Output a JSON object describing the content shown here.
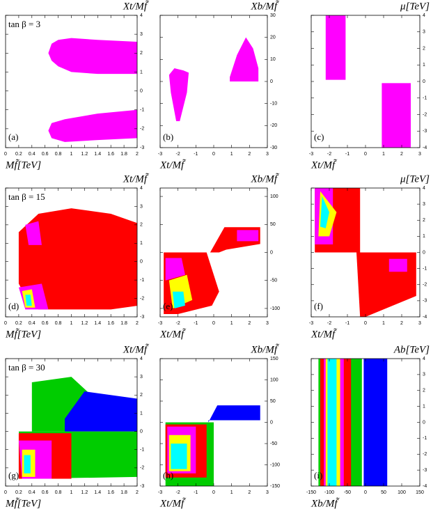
{
  "chart_data": [
    {
      "type": "scatter",
      "panel": "(a)",
      "annotation": "tan β = 3",
      "xlabel": "Mf̃[TeV]",
      "ylabel": "Xt/Mf̃",
      "xlim": [
        0,
        2
      ],
      "ylim": [
        -3,
        4
      ],
      "xticks": [
        0,
        0.2,
        0.4,
        0.6,
        0.8,
        1,
        1.2,
        1.4,
        1.6,
        1.8,
        2
      ],
      "yticks": [
        -3,
        -2,
        -1,
        0,
        1,
        2,
        3,
        4
      ],
      "series": [
        {
          "color": "#ff00ff",
          "x": [
            0.65,
            0.7,
            0.8,
            1.0,
            1.4,
            2,
            2,
            1.4,
            1.0,
            0.8,
            0.7
          ],
          "values": [
            2,
            2.5,
            2.7,
            2.8,
            2.7,
            2.6,
            0.9,
            0.9,
            1.0,
            1.3,
            1.6
          ]
        },
        {
          "color": "#ff00ff",
          "x": [
            0.65,
            0.7,
            0.9,
            1.4,
            2,
            2,
            1.4,
            0.9,
            0.7
          ],
          "values": [
            -2.1,
            -1.7,
            -1.5,
            -1.2,
            -1.0,
            -2.5,
            -2.6,
            -2.7,
            -2.5
          ]
        }
      ]
    },
    {
      "type": "scatter",
      "panel": "(b)",
      "xlabel": "Xt/Mf̃",
      "ylabel": "Xb/Mf̃",
      "xlim": [
        -3,
        3
      ],
      "ylim": [
        -30,
        30
      ],
      "xticks": [
        -3,
        -2,
        -1,
        0,
        1,
        2,
        3
      ],
      "yticks": [
        -30,
        -20,
        -10,
        0,
        10,
        20,
        30
      ],
      "series": [
        {
          "color": "#ff00ff",
          "x": [
            -2.5,
            -2.2,
            -1.7,
            -1.4,
            -1.5,
            -1.9,
            -2.1,
            -2.4
          ],
          "values": [
            3,
            6,
            5,
            4,
            -5,
            -18,
            -18,
            -5
          ]
        },
        {
          "color": "#ff00ff",
          "x": [
            0.9,
            1.3,
            1.8,
            2.2,
            2.5,
            2.5,
            0.9
          ],
          "values": [
            2,
            12,
            20,
            15,
            6,
            0,
            0
          ]
        }
      ]
    },
    {
      "type": "scatter",
      "panel": "(c)",
      "xlabel": "Xt/Mf̃",
      "ylabel": "μ[TeV]",
      "xlim": [
        -3,
        3
      ],
      "ylim": [
        -4,
        4
      ],
      "xticks": [
        -3,
        -2,
        -1,
        0,
        1,
        2,
        3
      ],
      "yticks": [
        -4,
        -3,
        -2,
        -1,
        0,
        1,
        2,
        3,
        4
      ],
      "series": [
        {
          "color": "#ff00ff",
          "x": [
            -2.2,
            -1.1,
            -1.1,
            -2.2
          ],
          "values": [
            4,
            4,
            0.1,
            0.1
          ]
        },
        {
          "color": "#ff00ff",
          "x": [
            0.9,
            2.5,
            2.5,
            0.9
          ],
          "values": [
            -0.1,
            -0.1,
            -4,
            -4
          ]
        }
      ]
    },
    {
      "type": "scatter",
      "panel": "(d)",
      "annotation": "tan β = 15",
      "xlabel": "Mf̃[TeV]",
      "ylabel": "Xt/Mf̃",
      "xlim": [
        0,
        2
      ],
      "ylim": [
        -3,
        4
      ],
      "xticks": [
        0,
        0.2,
        0.4,
        0.6,
        0.8,
        1,
        1.2,
        1.4,
        1.6,
        1.8,
        2
      ],
      "yticks": [
        -3,
        -2,
        -1,
        0,
        1,
        2,
        3,
        4
      ],
      "series": [
        {
          "color": "#ff0000",
          "x": [
            0.2,
            0.5,
            1,
            1.6,
            2,
            2,
            1.6,
            1,
            0.5,
            0.35,
            0.2
          ],
          "values": [
            1.6,
            2.6,
            2.9,
            2.6,
            2.1,
            -2.4,
            -2.6,
            -2.6,
            -2.6,
            -2.2,
            -1.2
          ]
        },
        {
          "color": "#ff00ff",
          "x": [
            0.3,
            0.5,
            0.55,
            0.35
          ],
          "values": [
            2,
            2.2,
            0.9,
            0.9
          ]
        },
        {
          "color": "#ff00ff",
          "x": [
            0.2,
            0.55,
            0.65,
            0.3
          ],
          "values": [
            -1.4,
            -1.2,
            -2.6,
            -2.6
          ]
        },
        {
          "color": "#ffff00",
          "x": [
            0.25,
            0.4,
            0.45,
            0.3
          ],
          "values": [
            -1.6,
            -1.5,
            -2.5,
            -2.5
          ]
        },
        {
          "color": "#00ffff",
          "x": [
            0.3,
            0.38,
            0.4,
            0.32
          ],
          "values": [
            -1.8,
            -1.8,
            -2.4,
            -2.4
          ]
        }
      ]
    },
    {
      "type": "scatter",
      "panel": "(e)",
      "xlabel": "Xt/Mf̃",
      "ylabel": "Xb/Mf̃",
      "xlim": [
        -3,
        3
      ],
      "ylim": [
        -115,
        115
      ],
      "xticks": [
        -3,
        -2,
        -1,
        0,
        1,
        2,
        3
      ],
      "yticks": [
        -100,
        -50,
        0,
        50,
        100
      ],
      "series": [
        {
          "color": "#ff0000",
          "x": [
            -2.8,
            -0.4,
            0.3,
            -0.1,
            -2.0,
            -2.8
          ],
          "values": [
            0,
            0,
            -70,
            -95,
            -110,
            -110
          ]
        },
        {
          "color": "#ff0000",
          "x": [
            -0.2,
            0.6,
            2.6,
            2.6,
            0.7,
            0.3
          ],
          "values": [
            0,
            45,
            45,
            15,
            5,
            0
          ]
        },
        {
          "color": "#ff00ff",
          "x": [
            1.3,
            2.5,
            2.5,
            1.3
          ],
          "values": [
            40,
            40,
            20,
            20
          ]
        },
        {
          "color": "#ff00ff",
          "x": [
            -2.7,
            -1.8,
            -1.6,
            -2.7
          ],
          "values": [
            -10,
            -10,
            -40,
            -50
          ]
        },
        {
          "color": "#ffff00",
          "x": [
            -2.5,
            -1.5,
            -1.2,
            -2.3
          ],
          "values": [
            -50,
            -40,
            -85,
            -100
          ]
        },
        {
          "color": "#00ffff",
          "x": [
            -2.3,
            -1.7,
            -1.6,
            -2.2
          ],
          "values": [
            -70,
            -70,
            -95,
            -100
          ]
        }
      ]
    },
    {
      "type": "scatter",
      "panel": "(f)",
      "xlabel": "Xt/Mf̃",
      "ylabel": "μ[TeV]",
      "xlim": [
        -3,
        3
      ],
      "ylim": [
        -4,
        4
      ],
      "xticks": [
        -3,
        -2,
        -1,
        0,
        1,
        2,
        3
      ],
      "yticks": [
        -4,
        -3,
        -2,
        -1,
        0,
        1,
        2,
        3,
        4
      ],
      "series": [
        {
          "color": "#ff0000",
          "x": [
            -2.8,
            -0.3,
            -0.3,
            -2.8
          ],
          "values": [
            4,
            4,
            0,
            0
          ]
        },
        {
          "color": "#ff0000",
          "x": [
            -0.5,
            2.8,
            2.8,
            0,
            -0.3
          ],
          "values": [
            0,
            0,
            -2.7,
            -4,
            -4
          ]
        },
        {
          "color": "#ff00ff",
          "x": [
            -2.8,
            -1.8,
            -1.8,
            -2.8
          ],
          "values": [
            4,
            4,
            0.5,
            0.5
          ]
        },
        {
          "color": "#ffff00",
          "x": [
            -2.5,
            -1.6,
            -2.0,
            -2.6
          ],
          "values": [
            3.8,
            2.5,
            1.0,
            1.0
          ]
        },
        {
          "color": "#00ffff",
          "x": [
            -2.4,
            -2.0,
            -2.2,
            -2.5
          ],
          "values": [
            3.5,
            2.5,
            1.5,
            1.6
          ]
        },
        {
          "color": "#ff00ff",
          "x": [
            1.3,
            2.3,
            2.3,
            1.3
          ],
          "values": [
            -0.4,
            -0.4,
            -1.2,
            -1.2
          ]
        }
      ]
    },
    {
      "type": "scatter",
      "panel": "(g)",
      "annotation": "tan β = 30",
      "xlabel": "Mf̃[TeV]",
      "ylabel": "Xt/Mf̃",
      "xlim": [
        0,
        2
      ],
      "ylim": [
        -3,
        4
      ],
      "xticks": [
        0,
        0.2,
        0.4,
        0.6,
        0.8,
        1,
        1.2,
        1.4,
        1.6,
        1.8,
        2
      ],
      "yticks": [
        -3,
        -2,
        -1,
        0,
        1,
        2,
        3,
        4
      ],
      "series": [
        {
          "color": "#00cc00",
          "x": [
            0.4,
            1,
            1.3,
            1,
            0.4
          ],
          "values": [
            2.7,
            3,
            2,
            0,
            0
          ]
        },
        {
          "color": "#0000ff",
          "x": [
            0.9,
            1.2,
            2,
            2,
            0.9
          ],
          "values": [
            0.7,
            2.2,
            1.8,
            0,
            0
          ]
        },
        {
          "color": "#00cc00",
          "x": [
            0.2,
            2,
            2,
            0.3
          ],
          "values": [
            0,
            0,
            -2.5,
            -2.6
          ]
        },
        {
          "color": "#ff0000",
          "x": [
            0.2,
            1.0,
            1.0,
            0.2
          ],
          "values": [
            -0.1,
            -0.1,
            -2.6,
            -2.6
          ]
        },
        {
          "color": "#ff00ff",
          "x": [
            0.2,
            0.7,
            0.7,
            0.25
          ],
          "values": [
            -0.5,
            -0.5,
            -2.6,
            -2.6
          ]
        },
        {
          "color": "#ffff00",
          "x": [
            0.25,
            0.45,
            0.45,
            0.25
          ],
          "values": [
            -1,
            -1,
            -2.5,
            -2.5
          ]
        },
        {
          "color": "#00ffff",
          "x": [
            0.28,
            0.38,
            0.38,
            0.28
          ],
          "values": [
            -1.3,
            -1.3,
            -2.3,
            -2.3
          ]
        }
      ]
    },
    {
      "type": "scatter",
      "panel": "(h)",
      "xlabel": "Xt/Mf̃",
      "ylabel": "Xb/Mf̃",
      "xlim": [
        -3,
        3
      ],
      "ylim": [
        -150,
        150
      ],
      "xticks": [
        -3,
        -2,
        -1,
        0,
        1,
        2,
        3
      ],
      "yticks": [
        -150,
        -100,
        -50,
        0,
        50,
        100,
        150
      ],
      "series": [
        {
          "color": "#0000ff",
          "x": [
            -0.3,
            0.2,
            2.6,
            2.6,
            -0.3
          ],
          "values": [
            0,
            40,
            40,
            5,
            5
          ]
        },
        {
          "color": "#00cc00",
          "x": [
            -2.7,
            0,
            0,
            -2.7
          ],
          "values": [
            0,
            0,
            -150,
            -150
          ]
        },
        {
          "color": "#ff0000",
          "x": [
            -2.7,
            -0.4,
            -0.4,
            -2.7
          ],
          "values": [
            -5,
            -5,
            -130,
            -130
          ]
        },
        {
          "color": "#ff00ff",
          "x": [
            -2.6,
            -1,
            -1,
            -2.6
          ],
          "values": [
            -10,
            -10,
            -120,
            -120
          ]
        },
        {
          "color": "#ffff00",
          "x": [
            -2.5,
            -1.3,
            -1.3,
            -2.5
          ],
          "values": [
            -30,
            -30,
            -115,
            -115
          ]
        },
        {
          "color": "#00ffff",
          "x": [
            -2.4,
            -1.5,
            -1.5,
            -2.4
          ],
          "values": [
            -50,
            -50,
            -110,
            -110
          ]
        }
      ]
    },
    {
      "type": "scatter",
      "panel": "(i)",
      "xlabel": "Xb/Mf̃",
      "ylabel": "Ab[TeV]",
      "xlim": [
        -150,
        150
      ],
      "ylim": [
        -4,
        4
      ],
      "xticks": [
        -150,
        -100,
        -50,
        0,
        50,
        100,
        150
      ],
      "yticks": [
        -4,
        -3,
        -2,
        -1,
        0,
        1,
        2,
        3,
        4
      ],
      "series": [
        {
          "color": "#0000ff",
          "x": [
            -5,
            60,
            60,
            -5
          ],
          "values": [
            4,
            4,
            -4,
            -4
          ]
        },
        {
          "color": "#00cc00",
          "x": [
            -130,
            -10,
            -10,
            -130
          ],
          "values": [
            4,
            4,
            -4,
            -4
          ]
        },
        {
          "color": "#ff0000",
          "x": [
            -125,
            -40,
            -40,
            -125
          ],
          "values": [
            4,
            4,
            -4,
            -4
          ]
        },
        {
          "color": "#ff00ff",
          "x": [
            -115,
            -60,
            -60,
            -115
          ],
          "values": [
            4,
            4,
            -4,
            -4
          ]
        },
        {
          "color": "#ffff00",
          "x": [
            -110,
            -70,
            -70,
            -110
          ],
          "values": [
            4,
            4,
            -4,
            -4
          ]
        },
        {
          "color": "#00ffff",
          "x": [
            -105,
            -80,
            -80,
            -105
          ],
          "values": [
            4,
            4,
            -4,
            -4
          ]
        }
      ]
    }
  ]
}
